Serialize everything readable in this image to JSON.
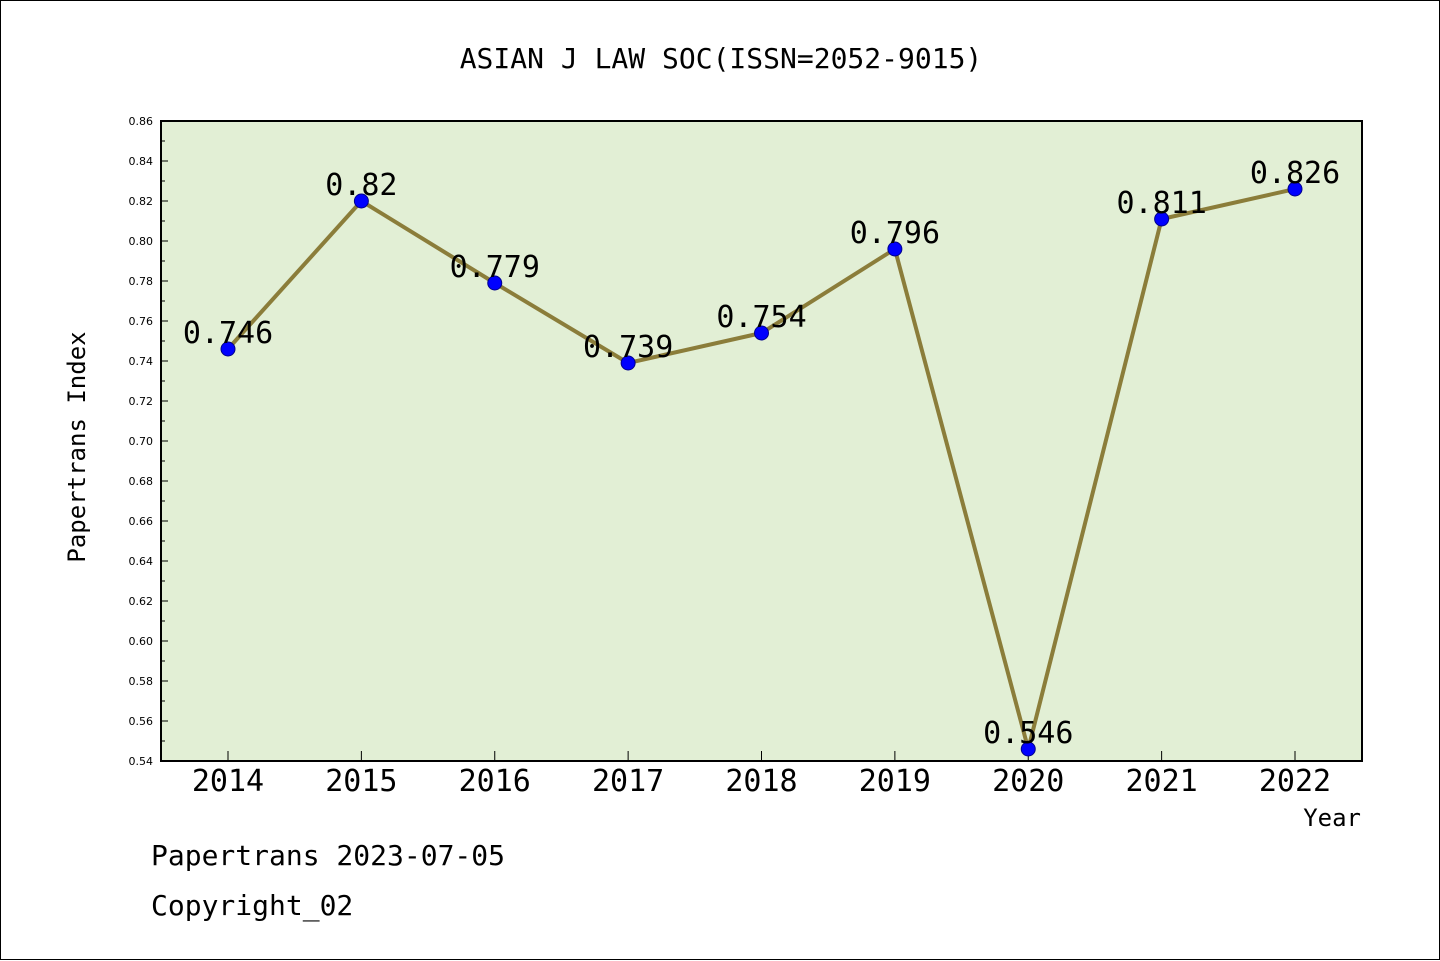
{
  "chart_data": {
    "type": "line",
    "title": "ASIAN J LAW SOC(ISSN=2052-9015)",
    "xlabel": "Year",
    "ylabel": "Papertrans Index",
    "categories": [
      "2014",
      "2015",
      "2016",
      "2017",
      "2018",
      "2019",
      "2020",
      "2021",
      "2022"
    ],
    "values": [
      0.746,
      0.82,
      0.779,
      0.739,
      0.754,
      0.796,
      0.546,
      0.811,
      0.826
    ],
    "data_labels": [
      "0.746",
      "0.82",
      "0.779",
      "0.739",
      "0.754",
      "0.796",
      "0.546",
      "0.811",
      "0.826"
    ],
    "ylim": [
      0.54,
      0.86
    ],
    "yticks": [
      "0.54",
      "0.56",
      "0.58",
      "0.60",
      "0.62",
      "0.64",
      "0.66",
      "0.68",
      "0.70",
      "0.72",
      "0.74",
      "0.76",
      "0.78",
      "0.80",
      "0.82",
      "0.84",
      "0.86"
    ],
    "grid": false,
    "legend": "none",
    "colors": {
      "plot_background": "#e2efd5",
      "line": "#8b7d3a",
      "marker": "#0000ff"
    }
  },
  "footer": {
    "line1": "Papertrans 2023-07-05",
    "line2": "Copyright_02"
  }
}
